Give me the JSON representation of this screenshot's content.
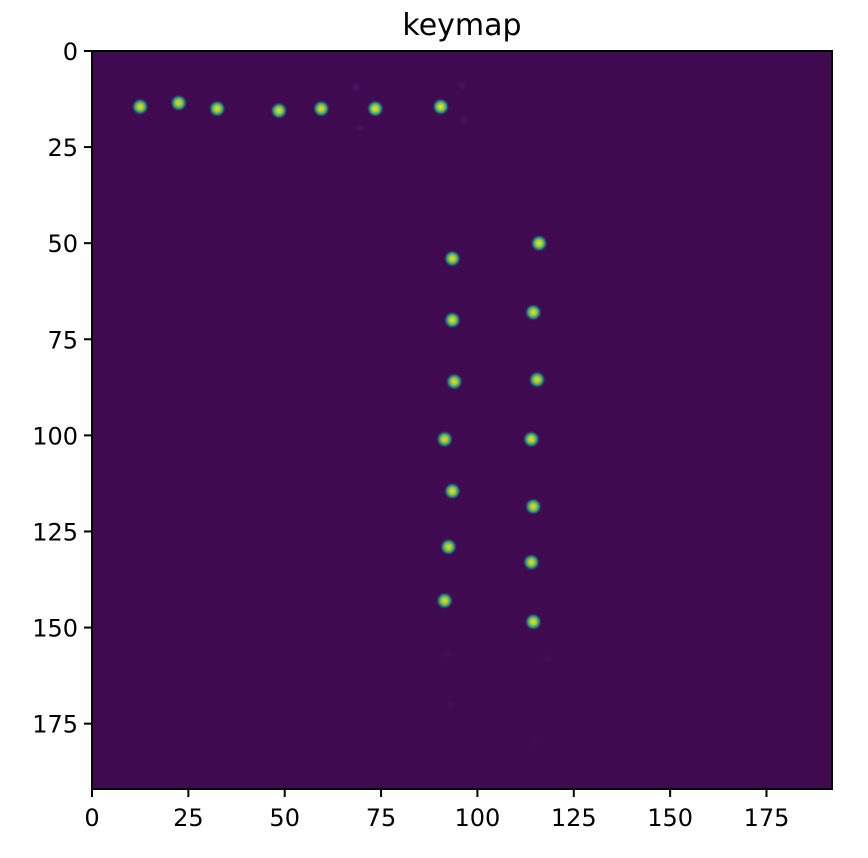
{
  "chart_data": {
    "type": "heatmap",
    "title": "keymap",
    "xlabel": "",
    "ylabel": "",
    "image_size": [
      192,
      192
    ],
    "xlim": [
      0,
      192
    ],
    "ylim": [
      192,
      0
    ],
    "y_axis_inverted": true,
    "colormap": "viridis",
    "background_color": "#440154",
    "grid": false,
    "x_ticks": [
      0,
      25,
      50,
      75,
      100,
      125,
      150,
      175
    ],
    "y_ticks": [
      0,
      25,
      50,
      75,
      100,
      125,
      150,
      175
    ],
    "keypoints": [
      {
        "x": 12.5,
        "y": 14.5,
        "intensity": 0.85
      },
      {
        "x": 22.5,
        "y": 13.5,
        "intensity": 0.8
      },
      {
        "x": 32.5,
        "y": 15.0,
        "intensity": 0.85
      },
      {
        "x": 48.5,
        "y": 15.5,
        "intensity": 0.85
      },
      {
        "x": 59.5,
        "y": 15.0,
        "intensity": 0.85
      },
      {
        "x": 73.5,
        "y": 15.0,
        "intensity": 0.9
      },
      {
        "x": 90.5,
        "y": 14.5,
        "intensity": 0.9
      },
      {
        "x": 93.5,
        "y": 54.0,
        "intensity": 0.85
      },
      {
        "x": 93.5,
        "y": 70.0,
        "intensity": 0.85
      },
      {
        "x": 94.0,
        "y": 86.0,
        "intensity": 0.8
      },
      {
        "x": 91.5,
        "y": 101.0,
        "intensity": 0.8
      },
      {
        "x": 93.5,
        "y": 114.5,
        "intensity": 0.85
      },
      {
        "x": 92.5,
        "y": 129.0,
        "intensity": 0.8
      },
      {
        "x": 91.5,
        "y": 143.0,
        "intensity": 0.8
      },
      {
        "x": 116.0,
        "y": 50.0,
        "intensity": 0.9
      },
      {
        "x": 114.5,
        "y": 68.0,
        "intensity": 0.85
      },
      {
        "x": 115.5,
        "y": 85.5,
        "intensity": 0.8
      },
      {
        "x": 114.0,
        "y": 101.0,
        "intensity": 0.85
      },
      {
        "x": 114.5,
        "y": 118.5,
        "intensity": 0.8
      },
      {
        "x": 114.0,
        "y": 133.0,
        "intensity": 0.8
      },
      {
        "x": 114.5,
        "y": 148.5,
        "intensity": 0.85
      }
    ],
    "faint_marks": [
      {
        "x": 68.5,
        "y": 9.5,
        "intensity": 0.12
      },
      {
        "x": 96.0,
        "y": 9.0,
        "intensity": 0.1
      },
      {
        "x": 69.5,
        "y": 20.0,
        "intensity": 0.1
      },
      {
        "x": 96.5,
        "y": 18.0,
        "intensity": 0.08
      },
      {
        "x": 92.0,
        "y": 157.0,
        "intensity": 0.05
      },
      {
        "x": 118.0,
        "y": 158.0,
        "intensity": 0.05
      },
      {
        "x": 93.0,
        "y": 170.0,
        "intensity": 0.05
      },
      {
        "x": 115.0,
        "y": 180.0,
        "intensity": 0.04
      }
    ]
  }
}
